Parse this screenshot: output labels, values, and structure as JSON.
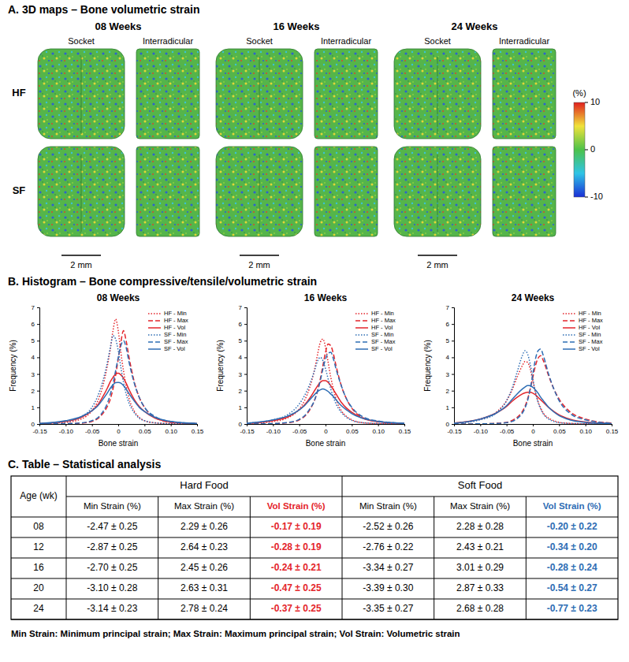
{
  "panel_a": {
    "title": "A. 3D maps – Bone volumetric strain",
    "ages": [
      "08 Weeks",
      "16 Weeks",
      "24 Weeks"
    ],
    "views": [
      "Socket",
      "Interradicular"
    ],
    "groups": [
      "HF",
      "SF"
    ],
    "scale_bar": "2 mm",
    "colorbar": {
      "label": "(%)",
      "range": [
        -10,
        10
      ],
      "ticks": [
        10,
        0,
        -10
      ]
    }
  },
  "panel_b": {
    "title": "B. Histogram – Bone compressive/tensile/volumetric strain"
  },
  "chart_data": [
    {
      "type": "line",
      "title": "08 Weeks",
      "x_label": "Bone strain",
      "y_label": "Frequency (%)",
      "x": [
        -0.15,
        -0.1,
        -0.07,
        -0.05,
        -0.04,
        -0.03,
        -0.02,
        -0.015,
        -0.01,
        -0.005,
        0,
        0.005,
        0.01,
        0.015,
        0.02,
        0.03,
        0.04,
        0.05,
        0.07,
        0.1,
        0.15
      ],
      "xlim": [
        -0.15,
        0.15
      ],
      "xticks": [
        -0.15,
        {
          "value": -0.1,
          "label": "-0.10"
        },
        -0.05,
        0,
        0.05,
        {
          "value": 0.1,
          "label": "0.10"
        },
        0.15
      ],
      "ylim": [
        0,
        7
      ],
      "yticks": [
        0,
        1,
        2,
        3,
        4,
        5,
        6,
        7
      ],
      "legend": "upper right",
      "series": [
        {
          "name": "HF - Min",
          "color": "#e4252b",
          "line_style": "dotted",
          "values": [
            0.02,
            0.1,
            0.3,
            0.8,
            1.3,
            2.2,
            3.6,
            4.5,
            5.6,
            6.3,
            5.6,
            4.3,
            3.2,
            2.3,
            1.6,
            0.8,
            0.4,
            0.2,
            0.07,
            0.02,
            0
          ]
        },
        {
          "name": "HF - Max",
          "color": "#e4252b",
          "line_style": "dashed",
          "values": [
            0,
            0.02,
            0.05,
            0.15,
            0.3,
            0.6,
            1.1,
            1.5,
            2.1,
            2.9,
            3.9,
            4.9,
            5.6,
            5.0,
            4.1,
            2.6,
            1.6,
            1.0,
            0.4,
            0.1,
            0.02
          ]
        },
        {
          "name": "HF - Vol",
          "color": "#e4252b",
          "line_style": "solid",
          "values": [
            0.02,
            0.15,
            0.4,
            0.8,
            1.1,
            1.6,
            2.2,
            2.55,
            2.8,
            3.0,
            3.05,
            2.95,
            2.75,
            2.45,
            2.1,
            1.5,
            1.05,
            0.75,
            0.35,
            0.12,
            0.02
          ]
        },
        {
          "name": "SF - Min",
          "color": "#2e6db4",
          "line_style": "dotted",
          "values": [
            0.03,
            0.15,
            0.45,
            1.0,
            1.6,
            2.5,
            3.8,
            4.6,
            5.3,
            5.1,
            4.4,
            3.4,
            2.5,
            1.8,
            1.3,
            0.7,
            0.35,
            0.2,
            0.07,
            0.02,
            0
          ]
        },
        {
          "name": "SF - Max",
          "color": "#2e6db4",
          "line_style": "dashed",
          "values": [
            0,
            0.02,
            0.07,
            0.2,
            0.35,
            0.7,
            1.3,
            1.8,
            2.4,
            3.2,
            4.0,
            4.7,
            5.0,
            4.6,
            3.8,
            2.5,
            1.6,
            1.0,
            0.45,
            0.15,
            0.03
          ]
        },
        {
          "name": "SF - Vol",
          "color": "#2e6db4",
          "line_style": "solid",
          "values": [
            0.03,
            0.2,
            0.45,
            0.8,
            1.05,
            1.45,
            1.9,
            2.15,
            2.35,
            2.48,
            2.5,
            2.45,
            2.3,
            2.1,
            1.85,
            1.4,
            1.0,
            0.75,
            0.4,
            0.15,
            0.03
          ]
        }
      ]
    },
    {
      "type": "line",
      "title": "16 Weeks",
      "x_label": "Bone strain",
      "y_label": "Frequency (%)",
      "x": [
        -0.15,
        -0.1,
        -0.07,
        -0.05,
        -0.04,
        -0.03,
        -0.02,
        -0.015,
        -0.01,
        -0.005,
        0,
        0.005,
        0.01,
        0.015,
        0.02,
        0.03,
        0.04,
        0.05,
        0.07,
        0.1,
        0.15
      ],
      "xlim": [
        -0.15,
        0.15
      ],
      "xticks": [
        -0.15,
        {
          "value": -0.1,
          "label": "-0.10"
        },
        -0.05,
        0,
        0.05,
        {
          "value": 0.1,
          "label": "0.10"
        },
        0.15
      ],
      "ylim": [
        0,
        7
      ],
      "yticks": [
        0,
        1,
        2,
        3,
        4,
        5,
        6,
        7
      ],
      "legend": "upper right",
      "series": [
        {
          "name": "HF - Min",
          "color": "#e4252b",
          "line_style": "dotted",
          "values": [
            0.03,
            0.15,
            0.4,
            0.9,
            1.4,
            2.2,
            3.4,
            4.2,
            4.9,
            5.1,
            4.6,
            3.7,
            2.8,
            2.1,
            1.5,
            0.8,
            0.45,
            0.25,
            0.08,
            0.02,
            0
          ]
        },
        {
          "name": "HF - Max",
          "color": "#e4252b",
          "line_style": "dashed",
          "values": [
            0,
            0.02,
            0.08,
            0.25,
            0.45,
            0.85,
            1.5,
            2.0,
            2.7,
            3.5,
            4.3,
            4.8,
            4.7,
            4.2,
            3.5,
            2.3,
            1.5,
            0.95,
            0.4,
            0.15,
            0.03
          ]
        },
        {
          "name": "HF - Vol",
          "color": "#e4252b",
          "line_style": "solid",
          "values": [
            0.03,
            0.2,
            0.45,
            0.85,
            1.15,
            1.55,
            2.05,
            2.3,
            2.5,
            2.6,
            2.6,
            2.5,
            2.3,
            2.05,
            1.8,
            1.3,
            0.95,
            0.7,
            0.35,
            0.13,
            0.03
          ]
        },
        {
          "name": "SF - Min",
          "color": "#2e6db4",
          "line_style": "dotted",
          "values": [
            0.05,
            0.25,
            0.6,
            1.2,
            1.7,
            2.4,
            3.3,
            3.8,
            4.0,
            3.8,
            3.3,
            2.7,
            2.1,
            1.6,
            1.2,
            0.7,
            0.4,
            0.22,
            0.08,
            0.03,
            0
          ]
        },
        {
          "name": "SF - Max",
          "color": "#2e6db4",
          "line_style": "dashed",
          "values": [
            0,
            0.03,
            0.1,
            0.28,
            0.5,
            0.9,
            1.5,
            2.0,
            2.6,
            3.3,
            3.9,
            4.25,
            4.3,
            3.9,
            3.3,
            2.3,
            1.5,
            1.0,
            0.45,
            0.18,
            0.04
          ]
        },
        {
          "name": "SF - Vol",
          "color": "#2e6db4",
          "line_style": "solid",
          "values": [
            0.05,
            0.25,
            0.5,
            0.85,
            1.1,
            1.45,
            1.8,
            1.95,
            2.05,
            2.1,
            2.05,
            1.95,
            1.8,
            1.65,
            1.45,
            1.1,
            0.85,
            0.62,
            0.35,
            0.15,
            0.04
          ]
        }
      ]
    },
    {
      "type": "line",
      "title": "24 Weeks",
      "x_label": "Bone strain",
      "y_label": "Frequency (%)",
      "x": [
        -0.15,
        -0.1,
        -0.07,
        -0.05,
        -0.04,
        -0.03,
        -0.02,
        -0.015,
        -0.01,
        -0.005,
        0,
        0.005,
        0.01,
        0.015,
        0.02,
        0.03,
        0.04,
        0.05,
        0.07,
        0.1,
        0.15
      ],
      "xlim": [
        -0.15,
        0.15
      ],
      "xticks": [
        -0.15,
        {
          "value": -0.1,
          "label": "-0.10"
        },
        -0.05,
        0,
        0.05,
        {
          "value": 0.1,
          "label": "0.10"
        },
        0.15
      ],
      "ylim": [
        0,
        7
      ],
      "yticks": [
        0,
        1,
        2,
        3,
        4,
        5,
        6,
        7
      ],
      "legend": "upper right",
      "series": [
        {
          "name": "HF - Min",
          "color": "#e4252b",
          "line_style": "dotted",
          "values": [
            0.05,
            0.3,
            0.7,
            1.4,
            2.0,
            2.8,
            3.5,
            3.75,
            3.7,
            3.3,
            2.6,
            1.9,
            1.35,
            0.95,
            0.65,
            0.35,
            0.2,
            0.1,
            0.04,
            0.01,
            0
          ]
        },
        {
          "name": "HF - Max",
          "color": "#e4252b",
          "line_style": "dashed",
          "values": [
            0,
            0.01,
            0.04,
            0.1,
            0.2,
            0.4,
            0.75,
            1.05,
            1.5,
            2.1,
            2.8,
            3.5,
            3.95,
            4.1,
            3.8,
            2.9,
            2.1,
            1.5,
            0.75,
            0.3,
            0.05
          ]
        },
        {
          "name": "HF - Vol",
          "color": "#e4252b",
          "line_style": "solid",
          "values": [
            0.06,
            0.3,
            0.65,
            1.05,
            1.35,
            1.6,
            1.8,
            1.87,
            1.9,
            1.9,
            1.85,
            1.75,
            1.6,
            1.45,
            1.3,
            1.0,
            0.75,
            0.55,
            0.3,
            0.12,
            0.03
          ]
        },
        {
          "name": "SF - Min",
          "color": "#2e6db4",
          "line_style": "dotted",
          "values": [
            0.04,
            0.25,
            0.65,
            1.4,
            2.1,
            3.1,
            4.1,
            4.4,
            4.2,
            3.6,
            2.7,
            1.9,
            1.3,
            0.9,
            0.6,
            0.3,
            0.15,
            0.08,
            0.03,
            0.01,
            0
          ]
        },
        {
          "name": "SF - Max",
          "color": "#2e6db4",
          "line_style": "dashed",
          "values": [
            0,
            0.01,
            0.03,
            0.08,
            0.15,
            0.32,
            0.65,
            0.95,
            1.4,
            2.1,
            3.0,
            3.9,
            4.4,
            4.5,
            4.1,
            3.0,
            2.1,
            1.4,
            0.65,
            0.25,
            0.04
          ]
        },
        {
          "name": "SF - Vol",
          "color": "#2e6db4",
          "line_style": "solid",
          "values": [
            0.05,
            0.3,
            0.65,
            1.1,
            1.45,
            1.8,
            2.1,
            2.22,
            2.3,
            2.3,
            2.2,
            2.05,
            1.85,
            1.6,
            1.4,
            1.0,
            0.72,
            0.5,
            0.25,
            0.1,
            0.02
          ]
        }
      ]
    }
  ],
  "panel_c": {
    "title": "C. Table – Statistical analysis",
    "table": {
      "age_header": "Age (wk)",
      "groups": [
        {
          "name": "Hard Food",
          "columns": [
            {
              "label": "Min Strain (%)"
            },
            {
              "label": "Max Strain (%)"
            },
            {
              "label": "Vol Strain (%)",
              "color": "#e4252b"
            }
          ]
        },
        {
          "name": "Soft Food",
          "columns": [
            {
              "label": "Min Strain (%)"
            },
            {
              "label": "Max Strain (%)"
            },
            {
              "label": "Vol Strain (%)",
              "color": "#2e6db4"
            }
          ]
        }
      ],
      "rows": [
        [
          "08",
          "-2.47 ± 0.25",
          "2.29 ± 0.26",
          "-0.17 ± 0.19",
          "-2.52 ± 0.26",
          "2.28 ± 0.28",
          "-0.20 ± 0.22"
        ],
        [
          "12",
          "-2.87 ± 0.25",
          "2.64 ± 0.23",
          "-0.28 ± 0.19",
          "-2.76 ± 0.22",
          "2.43 ± 0.21",
          "-0.34 ± 0.20"
        ],
        [
          "16",
          "-2.70 ± 0.25",
          "2.45 ± 0.26",
          "-0.24 ± 0.21",
          "-3.34 ± 0.27",
          "3.01 ± 0.29",
          "-0.28 ± 0.24"
        ],
        [
          "20",
          "-3.10 ± 0.28",
          "2.63 ± 0.31",
          "-0.47 ± 0.25",
          "-3.39 ± 0.30",
          "2.87 ± 0.33",
          "-0.54 ± 0.27"
        ],
        [
          "24",
          "-3.14 ± 0.23",
          "2.78 ± 0.24",
          "-0.37 ± 0.25",
          "-3.35 ± 0.27",
          "2.68 ± 0.28",
          "-0.77 ± 0.23"
        ]
      ]
    },
    "footnote": "Min Strain: Minimum principal strain; Max Strain: Maximum principal strain; Vol Strain: Volumetric strain"
  }
}
